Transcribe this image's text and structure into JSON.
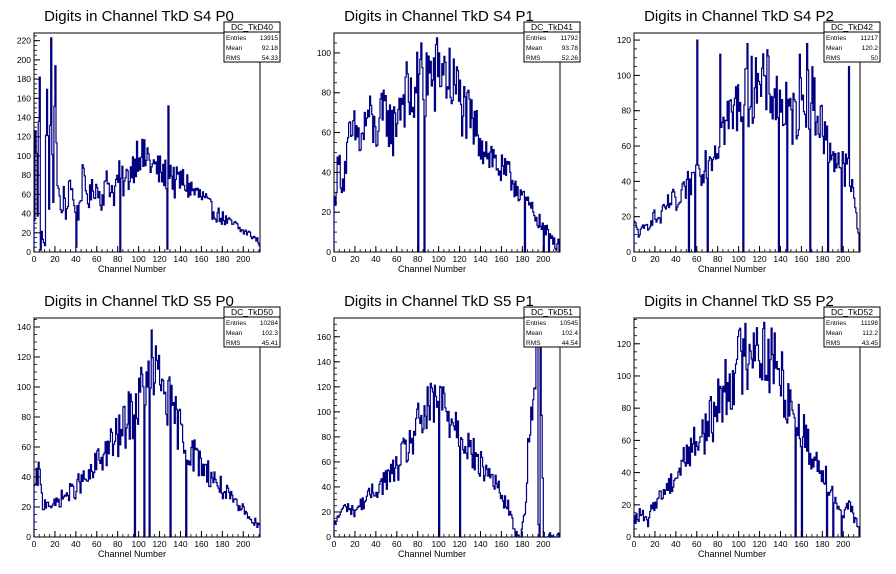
{
  "colors": {
    "line": "#000080",
    "axis": "#000000",
    "background": "#ffffff"
  },
  "chart_data": [
    {
      "type": "histogram",
      "title": "Digits in Channel TkD S4 P0",
      "xlabel": "Channel Number",
      "ylabel": "",
      "xlim": [
        0,
        216
      ],
      "ylim": [
        0,
        228
      ],
      "xticks": [
        "0",
        "20",
        "40",
        "60",
        "80",
        "100",
        "120",
        "140",
        "160",
        "180",
        "200"
      ],
      "yticks": [
        "0",
        "20",
        "40",
        "60",
        "80",
        "100",
        "120",
        "140",
        "160",
        "180",
        "200",
        "220"
      ],
      "stats": {
        "name": "DC_TkD40",
        "rows": [
          [
            "Entries",
            "13915"
          ],
          [
            "Mean",
            "92.18"
          ],
          [
            "RMS",
            "54.33"
          ]
        ]
      },
      "bin_width": 1,
      "control_points": [
        [
          0,
          30
        ],
        [
          1,
          145
        ],
        [
          3,
          40
        ],
        [
          5,
          200
        ],
        [
          6,
          35
        ],
        [
          8,
          15
        ],
        [
          10,
          5
        ],
        [
          12,
          210
        ],
        [
          14,
          40
        ],
        [
          16,
          205
        ],
        [
          18,
          45
        ],
        [
          20,
          210
        ],
        [
          22,
          70
        ],
        [
          24,
          50
        ],
        [
          26,
          40
        ],
        [
          28,
          60
        ],
        [
          30,
          35
        ],
        [
          34,
          80
        ],
        [
          38,
          45
        ],
        [
          42,
          40
        ],
        [
          46,
          75
        ],
        [
          52,
          55
        ],
        [
          58,
          70
        ],
        [
          64,
          55
        ],
        [
          70,
          75
        ],
        [
          76,
          60
        ],
        [
          80,
          80
        ],
        [
          86,
          70
        ],
        [
          92,
          85
        ],
        [
          96,
          95
        ],
        [
          100,
          110
        ],
        [
          104,
          95
        ],
        [
          108,
          100
        ],
        [
          112,
          90
        ],
        [
          118,
          85
        ],
        [
          124,
          80
        ],
        [
          128,
          80
        ],
        [
          130,
          85
        ],
        [
          134,
          70
        ],
        [
          138,
          75
        ],
        [
          144,
          72
        ],
        [
          150,
          65
        ],
        [
          156,
          60
        ],
        [
          162,
          55
        ],
        [
          168,
          45
        ],
        [
          174,
          40
        ],
        [
          180,
          35
        ],
        [
          186,
          30
        ],
        [
          192,
          28
        ],
        [
          198,
          22
        ],
        [
          204,
          20
        ],
        [
          210,
          15
        ],
        [
          215,
          10
        ]
      ],
      "spikes": [
        [
          127,
          3
        ],
        [
          128,
          152
        ],
        [
          6,
          2
        ],
        [
          40,
          5
        ],
        [
          82,
          0
        ]
      ]
    },
    {
      "type": "histogram",
      "title": "Digits in Channel TkD S4 P1",
      "xlabel": "Channel Number",
      "ylabel": "",
      "xlim": [
        0,
        216
      ],
      "ylim": [
        0,
        110
      ],
      "xticks": [
        "0",
        "20",
        "40",
        "60",
        "80",
        "100",
        "120",
        "140",
        "160",
        "180",
        "200"
      ],
      "yticks": [
        "0",
        "20",
        "40",
        "60",
        "80",
        "100"
      ],
      "stats": {
        "name": "DC_TkD41",
        "rows": [
          [
            "Entries",
            "11792"
          ],
          [
            "Mean",
            "93.78"
          ],
          [
            "RMS",
            "52.26"
          ]
        ]
      },
      "bin_width": 1,
      "control_points": [
        [
          0,
          25
        ],
        [
          4,
          45
        ],
        [
          8,
          35
        ],
        [
          14,
          55
        ],
        [
          20,
          60
        ],
        [
          26,
          55
        ],
        [
          32,
          70
        ],
        [
          38,
          60
        ],
        [
          44,
          65
        ],
        [
          50,
          70
        ],
        [
          56,
          60
        ],
        [
          62,
          75
        ],
        [
          68,
          80
        ],
        [
          74,
          75
        ],
        [
          80,
          85
        ],
        [
          86,
          80
        ],
        [
          90,
          90
        ],
        [
          96,
          85
        ],
        [
          100,
          95
        ],
        [
          106,
          90
        ],
        [
          112,
          85
        ],
        [
          118,
          80
        ],
        [
          124,
          70
        ],
        [
          130,
          65
        ],
        [
          136,
          60
        ],
        [
          142,
          55
        ],
        [
          148,
          50
        ],
        [
          154,
          45
        ],
        [
          160,
          40
        ],
        [
          166,
          38
        ],
        [
          172,
          35
        ],
        [
          178,
          30
        ],
        [
          184,
          25
        ],
        [
          190,
          20
        ],
        [
          196,
          15
        ],
        [
          202,
          10
        ],
        [
          208,
          8
        ],
        [
          215,
          2
        ]
      ],
      "spikes": [
        [
          80,
          0
        ],
        [
          83,
          105
        ],
        [
          86,
          0
        ],
        [
          88,
          100
        ],
        [
          100,
          100
        ],
        [
          182,
          0
        ],
        [
          200,
          0
        ],
        [
          205,
          0
        ]
      ]
    },
    {
      "type": "histogram",
      "title": "Digits in Channel TkD S4 P2",
      "xlabel": "Channel Number",
      "ylabel": "",
      "xlim": [
        0,
        216
      ],
      "ylim": [
        0,
        124
      ],
      "xticks": [
        "0",
        "20",
        "40",
        "60",
        "80",
        "100",
        "120",
        "140",
        "160",
        "180",
        "200"
      ],
      "yticks": [
        "0",
        "20",
        "40",
        "60",
        "80",
        "100",
        "120"
      ],
      "stats": {
        "name": "DC_TkD42",
        "rows": [
          [
            "Entries",
            "11217"
          ],
          [
            "Mean",
            "120.2"
          ],
          [
            "RMS",
            "50"
          ]
        ]
      },
      "bin_width": 1,
      "control_points": [
        [
          0,
          15
        ],
        [
          6,
          10
        ],
        [
          12,
          15
        ],
        [
          18,
          20
        ],
        [
          24,
          18
        ],
        [
          30,
          25
        ],
        [
          36,
          30
        ],
        [
          42,
          25
        ],
        [
          48,
          35
        ],
        [
          54,
          40
        ],
        [
          60,
          45
        ],
        [
          66,
          50
        ],
        [
          72,
          55
        ],
        [
          78,
          60
        ],
        [
          84,
          70
        ],
        [
          90,
          75
        ],
        [
          96,
          80
        ],
        [
          102,
          90
        ],
        [
          108,
          85
        ],
        [
          114,
          95
        ],
        [
          120,
          90
        ],
        [
          126,
          95
        ],
        [
          132,
          90
        ],
        [
          138,
          85
        ],
        [
          144,
          80
        ],
        [
          150,
          75
        ],
        [
          156,
          80
        ],
        [
          162,
          85
        ],
        [
          168,
          90
        ],
        [
          174,
          80
        ],
        [
          180,
          70
        ],
        [
          186,
          60
        ],
        [
          192,
          55
        ],
        [
          198,
          50
        ],
        [
          204,
          45
        ],
        [
          210,
          30
        ],
        [
          215,
          5
        ]
      ],
      "spikes": [
        [
          52,
          0
        ],
        [
          58,
          0
        ],
        [
          60,
          120
        ],
        [
          70,
          0
        ],
        [
          82,
          112
        ],
        [
          104,
          0
        ],
        [
          108,
          118
        ],
        [
          116,
          110
        ],
        [
          138,
          0
        ],
        [
          146,
          0
        ],
        [
          158,
          112
        ],
        [
          165,
          118
        ],
        [
          168,
          0
        ],
        [
          185,
          0
        ],
        [
          198,
          0
        ],
        [
          205,
          105
        ]
      ]
    },
    {
      "type": "histogram",
      "title": "Digits in Channel TkD S5 P0",
      "xlabel": "Channel Number",
      "ylabel": "",
      "xlim": [
        0,
        216
      ],
      "ylim": [
        0,
        146
      ],
      "xticks": [
        "0",
        "20",
        "40",
        "60",
        "80",
        "100",
        "120",
        "140",
        "160",
        "180",
        "200"
      ],
      "yticks": [
        "0",
        "20",
        "40",
        "60",
        "80",
        "100",
        "120",
        "140"
      ],
      "stats": {
        "name": "DC_TkD50",
        "rows": [
          [
            "Entries",
            "10284"
          ],
          [
            "Mean",
            "102.3"
          ],
          [
            "RMS",
            "45.41"
          ]
        ]
      },
      "bin_width": 1,
      "control_points": [
        [
          0,
          30
        ],
        [
          4,
          45
        ],
        [
          8,
          20
        ],
        [
          12,
          25
        ],
        [
          18,
          20
        ],
        [
          24,
          25
        ],
        [
          30,
          28
        ],
        [
          36,
          30
        ],
        [
          42,
          35
        ],
        [
          48,
          38
        ],
        [
          54,
          40
        ],
        [
          60,
          50
        ],
        [
          66,
          55
        ],
        [
          72,
          60
        ],
        [
          78,
          65
        ],
        [
          84,
          70
        ],
        [
          90,
          80
        ],
        [
          96,
          85
        ],
        [
          102,
          95
        ],
        [
          108,
          100
        ],
        [
          112,
          110
        ],
        [
          118,
          105
        ],
        [
          124,
          100
        ],
        [
          128,
          90
        ],
        [
          134,
          80
        ],
        [
          140,
          70
        ],
        [
          146,
          60
        ],
        [
          152,
          55
        ],
        [
          158,
          50
        ],
        [
          164,
          45
        ],
        [
          170,
          40
        ],
        [
          176,
          35
        ],
        [
          182,
          30
        ],
        [
          188,
          25
        ],
        [
          194,
          20
        ],
        [
          200,
          18
        ],
        [
          206,
          15
        ],
        [
          210,
          8
        ],
        [
          215,
          12
        ]
      ],
      "spikes": [
        [
          96,
          0
        ],
        [
          105,
          0
        ],
        [
          108,
          100
        ],
        [
          110,
          0
        ],
        [
          112,
          138
        ],
        [
          130,
          0
        ],
        [
          145,
          0
        ]
      ]
    },
    {
      "type": "histogram",
      "title": "Digits in Channel TkD S5 P1",
      "xlabel": "Channel Number",
      "ylabel": "",
      "xlim": [
        0,
        216
      ],
      "ylim": [
        0,
        175
      ],
      "xticks": [
        "0",
        "20",
        "40",
        "60",
        "80",
        "100",
        "120",
        "140",
        "160",
        "180",
        "200"
      ],
      "yticks": [
        "0",
        "20",
        "40",
        "60",
        "80",
        "100",
        "120",
        "140",
        "160"
      ],
      "stats": {
        "name": "DC_TkD51",
        "rows": [
          [
            "Entries",
            "10545"
          ],
          [
            "Mean",
            "102.4"
          ],
          [
            "RMS",
            "44.54"
          ]
        ]
      },
      "bin_width": 1,
      "control_points": [
        [
          0,
          10
        ],
        [
          6,
          20
        ],
        [
          12,
          25
        ],
        [
          18,
          20
        ],
        [
          24,
          25
        ],
        [
          30,
          30
        ],
        [
          36,
          35
        ],
        [
          42,
          40
        ],
        [
          48,
          45
        ],
        [
          54,
          50
        ],
        [
          60,
          55
        ],
        [
          66,
          65
        ],
        [
          72,
          75
        ],
        [
          78,
          85
        ],
        [
          84,
          95
        ],
        [
          90,
          100
        ],
        [
          96,
          105
        ],
        [
          100,
          110
        ],
        [
          106,
          100
        ],
        [
          112,
          95
        ],
        [
          118,
          90
        ],
        [
          124,
          80
        ],
        [
          130,
          70
        ],
        [
          136,
          60
        ],
        [
          142,
          55
        ],
        [
          148,
          50
        ],
        [
          154,
          45
        ],
        [
          160,
          30
        ],
        [
          166,
          25
        ],
        [
          172,
          5
        ],
        [
          178,
          0
        ],
        [
          182,
          20
        ],
        [
          186,
          80
        ],
        [
          190,
          110
        ],
        [
          194,
          155
        ],
        [
          197,
          175
        ],
        [
          200,
          0
        ],
        [
          206,
          0
        ],
        [
          215,
          0
        ]
      ],
      "spikes": [
        [
          100,
          0
        ],
        [
          104,
          120
        ],
        [
          120,
          0
        ],
        [
          195,
          10
        ],
        [
          196,
          0
        ]
      ]
    },
    {
      "type": "histogram",
      "title": "Digits in Channel TkD S5 P2",
      "xlabel": "Channel Number",
      "ylabel": "",
      "xlim": [
        0,
        216
      ],
      "ylim": [
        0,
        136
      ],
      "xticks": [
        "0",
        "20",
        "40",
        "60",
        "80",
        "100",
        "120",
        "140",
        "160",
        "180",
        "200"
      ],
      "yticks": [
        "0",
        "20",
        "40",
        "60",
        "80",
        "100",
        "120"
      ],
      "stats": {
        "name": "DC_TkD52",
        "rows": [
          [
            "Entries",
            "11198"
          ],
          [
            "Mean",
            "112.2"
          ],
          [
            "RMS",
            "43.45"
          ]
        ]
      },
      "bin_width": 1,
      "control_points": [
        [
          0,
          10
        ],
        [
          6,
          15
        ],
        [
          12,
          8
        ],
        [
          18,
          20
        ],
        [
          24,
          25
        ],
        [
          30,
          30
        ],
        [
          36,
          35
        ],
        [
          42,
          40
        ],
        [
          48,
          50
        ],
        [
          54,
          55
        ],
        [
          60,
          60
        ],
        [
          66,
          65
        ],
        [
          72,
          70
        ],
        [
          78,
          80
        ],
        [
          84,
          90
        ],
        [
          90,
          95
        ],
        [
          96,
          105
        ],
        [
          102,
          110
        ],
        [
          108,
          115
        ],
        [
          112,
          125
        ],
        [
          118,
          120
        ],
        [
          124,
          115
        ],
        [
          130,
          110
        ],
        [
          136,
          105
        ],
        [
          142,
          95
        ],
        [
          148,
          85
        ],
        [
          154,
          80
        ],
        [
          158,
          70
        ],
        [
          164,
          60
        ],
        [
          170,
          50
        ],
        [
          176,
          45
        ],
        [
          182,
          40
        ],
        [
          188,
          30
        ],
        [
          194,
          20
        ],
        [
          200,
          15
        ],
        [
          206,
          20
        ],
        [
          210,
          10
        ],
        [
          215,
          5
        ]
      ],
      "spikes": [
        [
          154,
          0
        ],
        [
          160,
          0
        ],
        [
          184,
          0
        ],
        [
          190,
          0
        ],
        [
          198,
          0
        ]
      ]
    }
  ]
}
